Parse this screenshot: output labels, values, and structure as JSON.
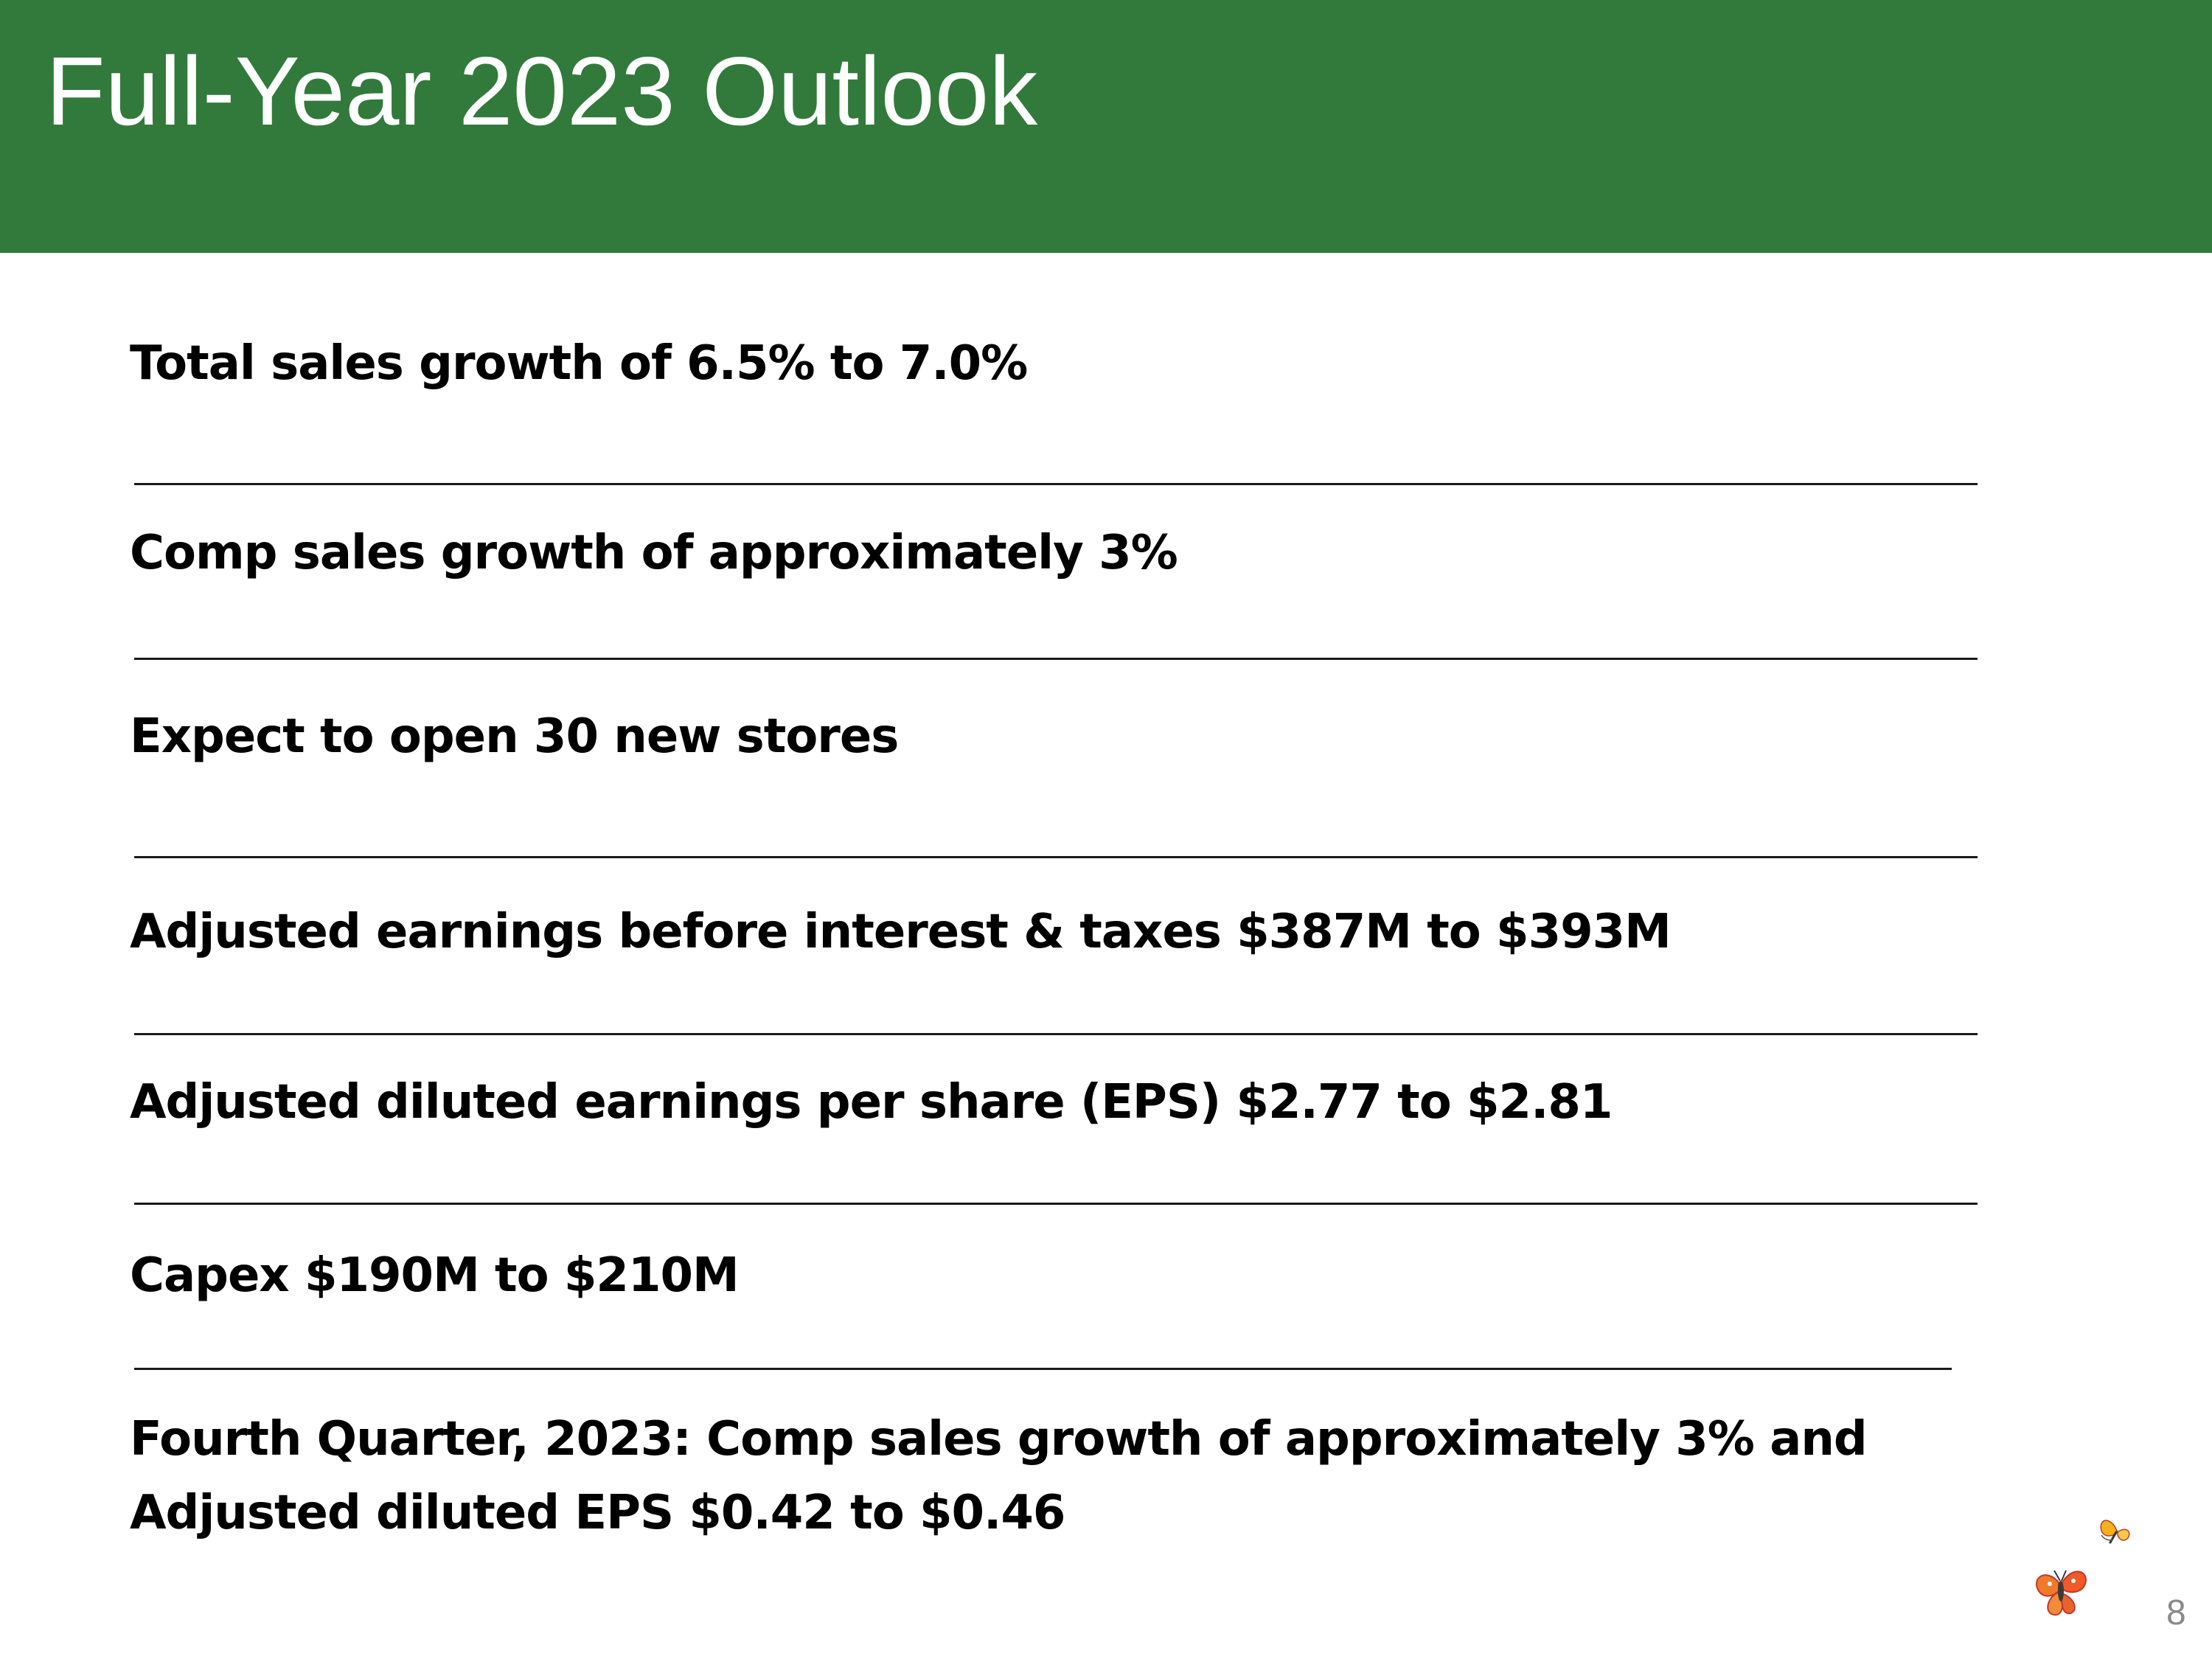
{
  "slide": {
    "title": "Full-Year 2023 Outlook",
    "page_number": "8",
    "colors": {
      "header_green": "#317a3b",
      "text": "#000000",
      "page_number": "#8a8a8a"
    }
  },
  "outlook": {
    "items": [
      "Total sales growth of 6.5% to 7.0%",
      "Comp sales growth of approximately 3%",
      "Expect to open 30 new stores",
      "Adjusted earnings before interest & taxes $387M to $393M",
      "Adjusted diluted earnings per share (EPS) $2.77 to $2.81",
      "Capex $190M to $210M"
    ],
    "fourth_quarter": {
      "line1": "Fourth Quarter, 2023: Comp sales growth of approximately 3% and",
      "line2": "Adjusted diluted EPS $0.42 to $0.46"
    }
  },
  "logo": {
    "icon": "butterfly-logo-icon"
  }
}
